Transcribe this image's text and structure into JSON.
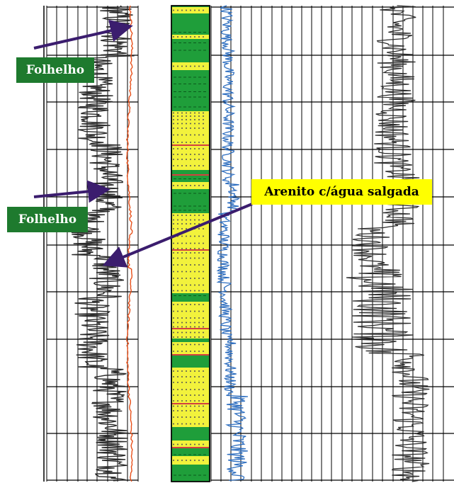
{
  "annotations": [
    {
      "id": "shale-top",
      "text": "Folhelho",
      "style": "green"
    },
    {
      "id": "shale-mid",
      "text": "Folhelho",
      "style": "green"
    },
    {
      "id": "sandstone",
      "text": "Arenito c/água salgada",
      "style": "yellow"
    }
  ],
  "colors": {
    "grid": "#000000",
    "gamma_ray_curve": "#2b2b2b",
    "sp_curve": "#e8501a",
    "resistivity_curve": "#2f6fc0",
    "lithology_shale": "#1f9e3a",
    "lithology_sand": "#f2f23c",
    "lithology_accent": "#d44040",
    "arrow": "#3b1d6e",
    "label_green": "#1e7a2e",
    "label_yellow": "#ffff00"
  },
  "tracks": [
    {
      "name": "gamma-ray-track"
    },
    {
      "name": "lithology-column"
    },
    {
      "name": "resistivity-track"
    },
    {
      "name": "right-log-track"
    }
  ]
}
